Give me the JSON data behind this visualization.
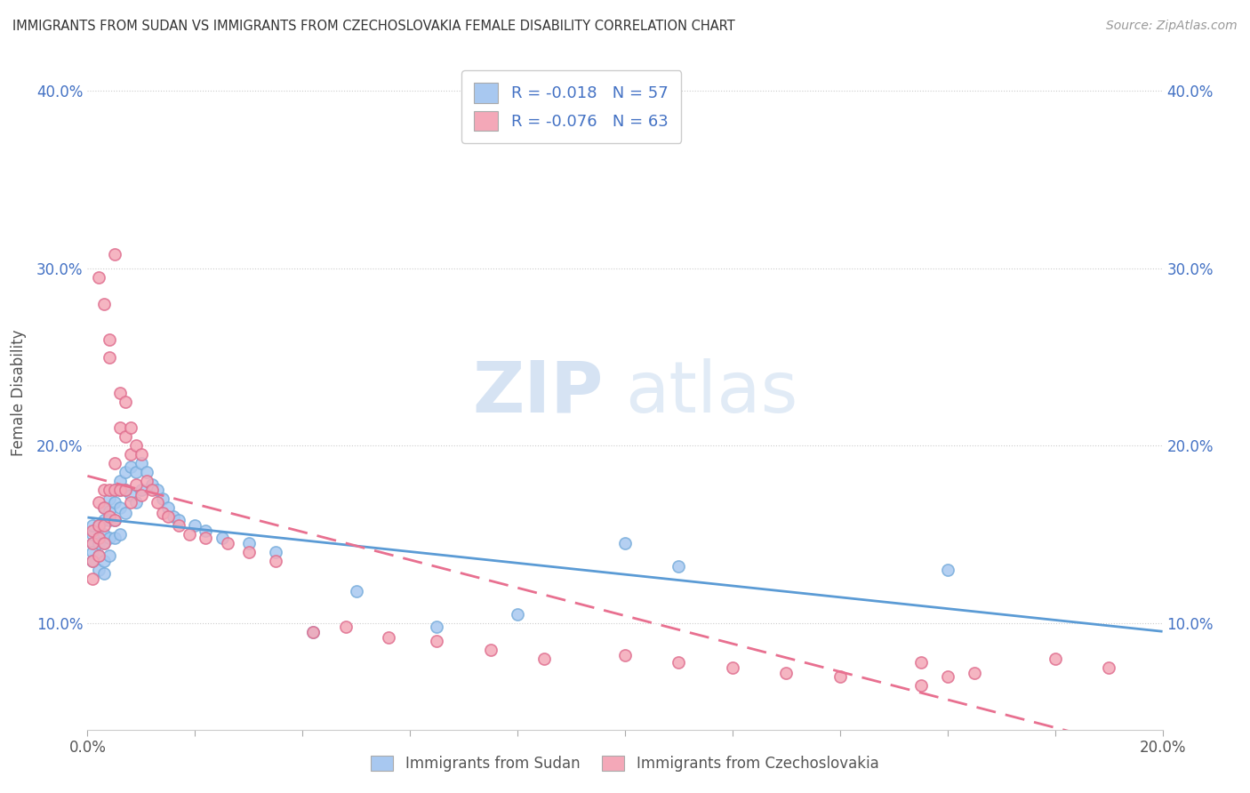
{
  "title": "IMMIGRANTS FROM SUDAN VS IMMIGRANTS FROM CZECHOSLOVAKIA FEMALE DISABILITY CORRELATION CHART",
  "source": "Source: ZipAtlas.com",
  "xlabel_sudan": "Immigrants from Sudan",
  "xlabel_czechoslovakia": "Immigrants from Czechoslovakia",
  "ylabel": "Female Disability",
  "xlim": [
    0.0,
    0.2
  ],
  "ylim": [
    0.04,
    0.42
  ],
  "yticks": [
    0.1,
    0.2,
    0.3,
    0.4
  ],
  "ytick_labels": [
    "10.0%",
    "20.0%",
    "30.0%",
    "40.0%"
  ],
  "xtick_labels_shown": [
    "0.0%",
    "20.0%"
  ],
  "sudan_color": "#a8c8f0",
  "sudan_edge_color": "#7aaedc",
  "czechoslovakia_color": "#f4a8b8",
  "czechoslovakia_edge_color": "#e07090",
  "sudan_R": -0.018,
  "sudan_N": 57,
  "czechoslovakia_R": -0.076,
  "czechoslovakia_N": 63,
  "trend_color_sudan": "#5b9bd5",
  "trend_color_czechoslovakia": "#e87090",
  "background_color": "#ffffff",
  "grid_color": "#cccccc",
  "watermark_zip": "ZIP",
  "watermark_atlas": "atlas",
  "sudan_points_x": [
    0.001,
    0.001,
    0.001,
    0.001,
    0.001,
    0.002,
    0.002,
    0.002,
    0.002,
    0.002,
    0.003,
    0.003,
    0.003,
    0.003,
    0.003,
    0.003,
    0.004,
    0.004,
    0.004,
    0.004,
    0.004,
    0.005,
    0.005,
    0.005,
    0.005,
    0.006,
    0.006,
    0.006,
    0.006,
    0.007,
    0.007,
    0.007,
    0.008,
    0.008,
    0.009,
    0.009,
    0.01,
    0.01,
    0.011,
    0.012,
    0.013,
    0.014,
    0.015,
    0.016,
    0.017,
    0.02,
    0.022,
    0.025,
    0.03,
    0.035,
    0.042,
    0.05,
    0.065,
    0.08,
    0.1,
    0.11,
    0.16
  ],
  "sudan_points_y": [
    0.145,
    0.15,
    0.155,
    0.14,
    0.135,
    0.155,
    0.148,
    0.145,
    0.138,
    0.13,
    0.165,
    0.158,
    0.15,
    0.145,
    0.135,
    0.128,
    0.17,
    0.163,
    0.158,
    0.148,
    0.138,
    0.175,
    0.168,
    0.158,
    0.148,
    0.18,
    0.175,
    0.165,
    0.15,
    0.185,
    0.175,
    0.162,
    0.188,
    0.172,
    0.185,
    0.168,
    0.19,
    0.175,
    0.185,
    0.178,
    0.175,
    0.17,
    0.165,
    0.16,
    0.158,
    0.155,
    0.152,
    0.148,
    0.145,
    0.14,
    0.095,
    0.118,
    0.098,
    0.105,
    0.145,
    0.132,
    0.13
  ],
  "czechoslovakia_points_x": [
    0.001,
    0.001,
    0.001,
    0.001,
    0.002,
    0.002,
    0.002,
    0.002,
    0.002,
    0.003,
    0.003,
    0.003,
    0.003,
    0.003,
    0.004,
    0.004,
    0.004,
    0.004,
    0.005,
    0.005,
    0.005,
    0.005,
    0.006,
    0.006,
    0.006,
    0.007,
    0.007,
    0.007,
    0.008,
    0.008,
    0.008,
    0.009,
    0.009,
    0.01,
    0.01,
    0.011,
    0.012,
    0.013,
    0.014,
    0.015,
    0.017,
    0.019,
    0.022,
    0.026,
    0.03,
    0.035,
    0.042,
    0.048,
    0.056,
    0.065,
    0.075,
    0.085,
    0.1,
    0.11,
    0.12,
    0.13,
    0.14,
    0.155,
    0.165,
    0.18,
    0.19,
    0.155,
    0.16
  ],
  "czechoslovakia_points_y": [
    0.152,
    0.145,
    0.135,
    0.125,
    0.295,
    0.168,
    0.155,
    0.148,
    0.138,
    0.28,
    0.175,
    0.165,
    0.155,
    0.145,
    0.26,
    0.25,
    0.175,
    0.16,
    0.308,
    0.19,
    0.175,
    0.158,
    0.23,
    0.21,
    0.175,
    0.225,
    0.205,
    0.175,
    0.21,
    0.195,
    0.168,
    0.2,
    0.178,
    0.195,
    0.172,
    0.18,
    0.175,
    0.168,
    0.162,
    0.16,
    0.155,
    0.15,
    0.148,
    0.145,
    0.14,
    0.135,
    0.095,
    0.098,
    0.092,
    0.09,
    0.085,
    0.08,
    0.082,
    0.078,
    0.075,
    0.072,
    0.07,
    0.078,
    0.072,
    0.08,
    0.075,
    0.065,
    0.07
  ]
}
